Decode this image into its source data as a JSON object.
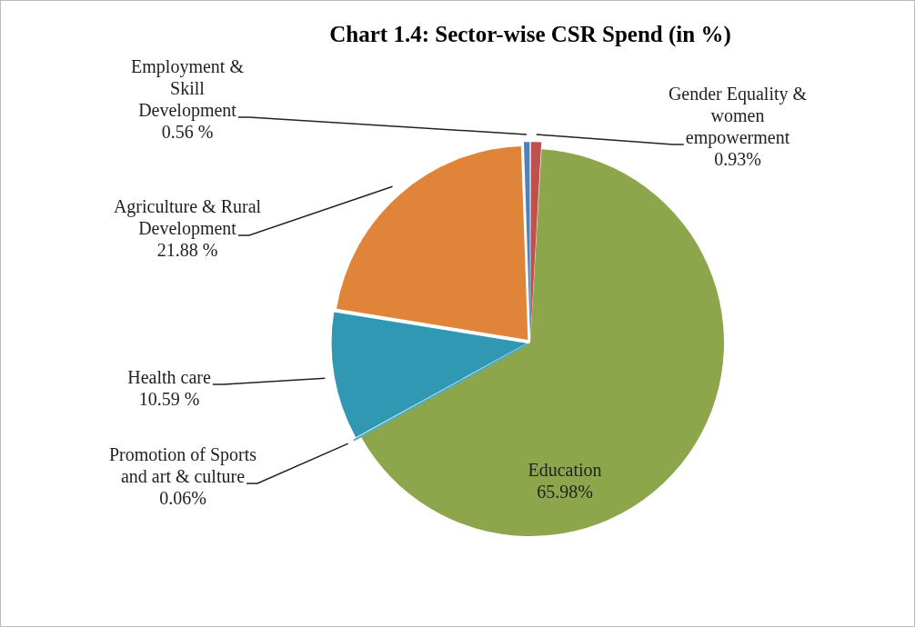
{
  "chart_data": {
    "type": "pie",
    "title": "Chart 1.4: Sector-wise CSR Spend (in %)",
    "categories": [
      "Gender Equality & women empowerment",
      "Education",
      "Promotion of Sports and art & culture",
      "Health care",
      "Agriculture & Rural Development",
      "Employment & Skill Development"
    ],
    "values": [
      0.93,
      65.98,
      0.06,
      10.59,
      21.88,
      0.56
    ],
    "value_labels": [
      "0.93%",
      "65.98%",
      "0.06%",
      "10.59 %",
      "21.88 %",
      "0.56 %"
    ],
    "colors": [
      "#c0504d",
      "#8ea64b",
      "#4bacc6",
      "#3198b3",
      "#e0843a",
      "#4f81bd"
    ],
    "legend": false
  }
}
